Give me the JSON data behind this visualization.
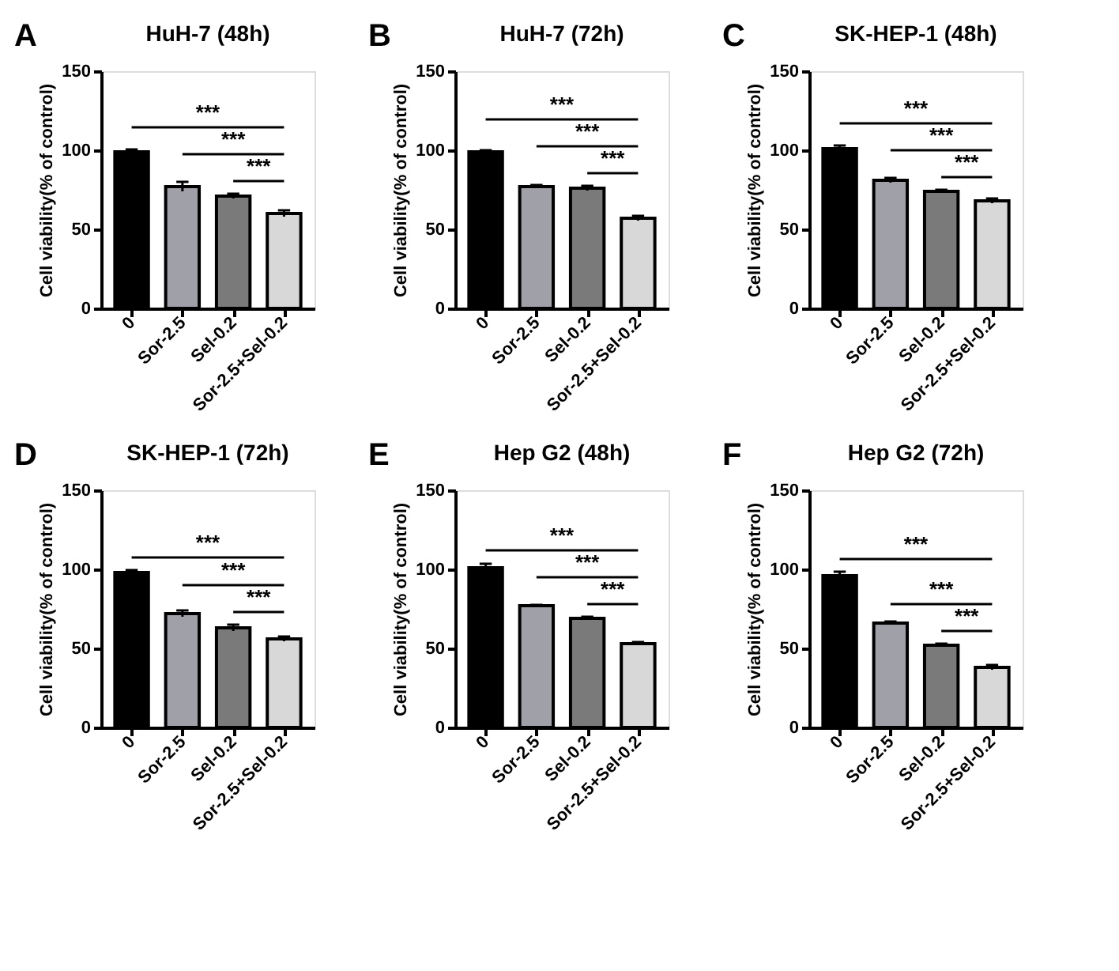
{
  "chart_data": [
    {
      "type": "bar",
      "title": "HuH-7 (48h)",
      "ylabel": "Cell viability(% of control)",
      "categories": [
        "0",
        "Sor-2.5",
        "Sel-0.2",
        "Sor-2.5+Sel-0.2"
      ],
      "values": [
        99,
        77,
        71,
        60
      ],
      "errors": [
        1.5,
        3,
        1.5,
        2
      ],
      "colors": [
        "#000000",
        "#a0a0a8",
        "#7a7a7a",
        "#d8d8d8"
      ],
      "ylim": [
        0,
        150
      ],
      "yticks": [
        0,
        50,
        100,
        150
      ],
      "grid": false,
      "annotations": [
        "A",
        "***",
        "***",
        "***"
      ]
    },
    {
      "type": "bar",
      "title": "HuH-7 (72h)",
      "ylabel": "Cell viability(% of control)",
      "categories": [
        "0",
        "Sor-2.5",
        "Sel-0.2",
        "Sor-2.5+Sel-0.2"
      ],
      "values": [
        99,
        77,
        76,
        57
      ],
      "errors": [
        1,
        1,
        1.5,
        1.5
      ],
      "colors": [
        "#000000",
        "#a0a0a8",
        "#7a7a7a",
        "#d8d8d8"
      ],
      "ylim": [
        0,
        150
      ],
      "yticks": [
        0,
        50,
        100,
        150
      ],
      "grid": false,
      "annotations": [
        "B",
        "***",
        "***",
        "***"
      ]
    },
    {
      "type": "bar",
      "title": "SK-HEP-1 (48h)",
      "ylabel": "Cell viability(% of control)",
      "categories": [
        "0",
        "Sor-2.5",
        "Sel-0.2",
        "Sor-2.5+Sel-0.2"
      ],
      "values": [
        101,
        81,
        74,
        68
      ],
      "errors": [
        2,
        1.5,
        1,
        1.5
      ],
      "colors": [
        "#000000",
        "#a0a0a8",
        "#7a7a7a",
        "#d8d8d8"
      ],
      "ylim": [
        0,
        150
      ],
      "yticks": [
        0,
        50,
        100,
        150
      ],
      "grid": false,
      "annotations": [
        "C",
        "***",
        "***",
        "***"
      ]
    },
    {
      "type": "bar",
      "title": "SK-HEP-1 (72h)",
      "ylabel": "Cell viability(% of control)",
      "categories": [
        "0",
        "Sor-2.5",
        "Sel-0.2",
        "Sor-2.5+Sel-0.2"
      ],
      "values": [
        98,
        72,
        63,
        56
      ],
      "errors": [
        1.5,
        2,
        2,
        1.5
      ],
      "colors": [
        "#000000",
        "#a0a0a8",
        "#7a7a7a",
        "#d8d8d8"
      ],
      "ylim": [
        0,
        150
      ],
      "yticks": [
        0,
        50,
        100,
        150
      ],
      "grid": false,
      "annotations": [
        "D",
        "***",
        "***",
        "***"
      ]
    },
    {
      "type": "bar",
      "title": "Hep G2 (48h)",
      "ylabel": "Cell viability(% of control)",
      "categories": [
        "0",
        "Sor-2.5",
        "Sel-0.2",
        "Sor-2.5+Sel-0.2"
      ],
      "values": [
        101,
        77,
        69,
        53
      ],
      "errors": [
        2.5,
        0.5,
        1,
        1
      ],
      "colors": [
        "#000000",
        "#a0a0a8",
        "#7a7a7a",
        "#d8d8d8"
      ],
      "ylim": [
        0,
        150
      ],
      "yticks": [
        0,
        50,
        100,
        150
      ],
      "grid": false,
      "annotations": [
        "E",
        "***",
        "***",
        "***"
      ]
    },
    {
      "type": "bar",
      "title": "Hep G2 (72h)",
      "ylabel": "Cell viability(% of control)",
      "categories": [
        "0",
        "Sor-2.5",
        "Sel-0.2",
        "Sor-2.5+Sel-0.2"
      ],
      "values": [
        96,
        66,
        52,
        38
      ],
      "errors": [
        2.5,
        1,
        1,
        1.5
      ],
      "colors": [
        "#000000",
        "#a0a0a8",
        "#7a7a7a",
        "#d8d8d8"
      ],
      "ylim": [
        0,
        150
      ],
      "yticks": [
        0,
        50,
        100,
        150
      ],
      "grid": false,
      "annotations": [
        "F",
        "***",
        "***",
        "***"
      ]
    }
  ]
}
